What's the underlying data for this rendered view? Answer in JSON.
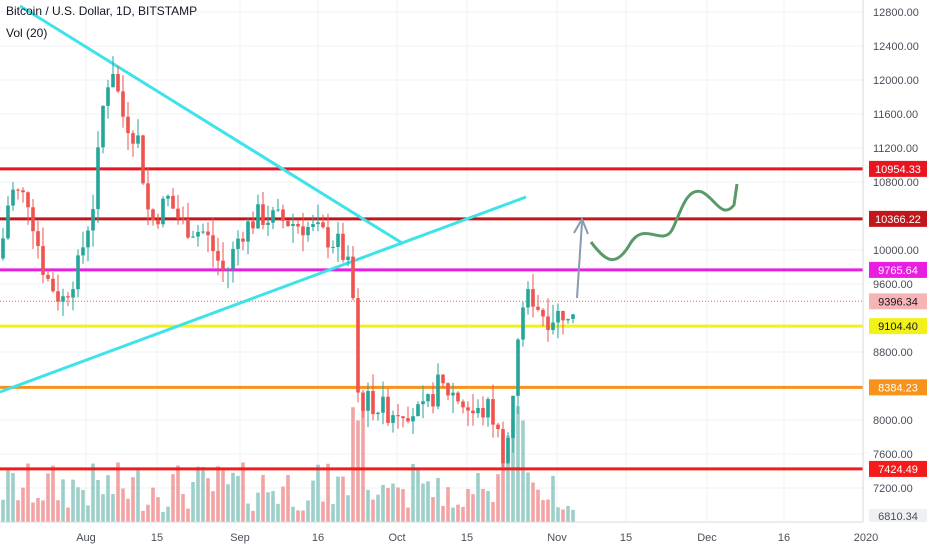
{
  "header": {
    "title": "Bitcoin / U.S. Dollar, 1D, BITSTAMP",
    "volume_indicator": "Vol (20)"
  },
  "price_axis": {
    "ticks": [
      "12800.00",
      "12400.00",
      "12000.00",
      "11600.00",
      "11200.00",
      "10800.00",
      "10000.00",
      "9600.00",
      "8800.00",
      "8000.00",
      "7600.00",
      "7200.00"
    ]
  },
  "time_axis": {
    "labels": [
      "Aug",
      "15",
      "Sep",
      "16",
      "Oct",
      "15",
      "Nov",
      "15",
      "Dec",
      "16",
      "2020"
    ]
  },
  "level_lines": [
    {
      "label": "10954.33",
      "price": 10954.33,
      "color": "#e8141f",
      "label_bg": "#e8141f",
      "label_fg": "#ffffff"
    },
    {
      "label": "10366.22",
      "price": 10366.22,
      "color": "#c2161d",
      "label_bg": "#c2161d",
      "label_fg": "#ffffff"
    },
    {
      "label": "9765.64",
      "price": 9765.64,
      "color": "#e81ee0",
      "label_bg": "#e81ee0",
      "label_fg": "#ffffff"
    },
    {
      "label": "9104.40",
      "price": 9104.4,
      "color": "#f2f21a",
      "label_bg": "#f2f21a",
      "label_fg": "#131722"
    },
    {
      "label": "8384.23",
      "price": 8384.23,
      "color": "#f7931a",
      "label_bg": "#f7931a",
      "label_fg": "#ffffff"
    },
    {
      "label": "7424.49",
      "price": 7424.49,
      "color": "#f51b1b",
      "label_bg": "#f51b1b",
      "label_fg": "#ffffff"
    }
  ],
  "last_price": {
    "label": "9396.34",
    "price": 9396.34,
    "color": "#ef5350",
    "label_bg": "#f7b4b4",
    "label_fg": "#131722"
  },
  "bottom_label": "6810.34",
  "colors": {
    "up": "#26a69a",
    "down": "#ef5350",
    "vol_up": "#9ccfc9",
    "vol_down": "#f2a4a4",
    "trendline": "#3ee3ea",
    "projection": "#5a9a6a",
    "arrow": "#8a9aae"
  }
}
